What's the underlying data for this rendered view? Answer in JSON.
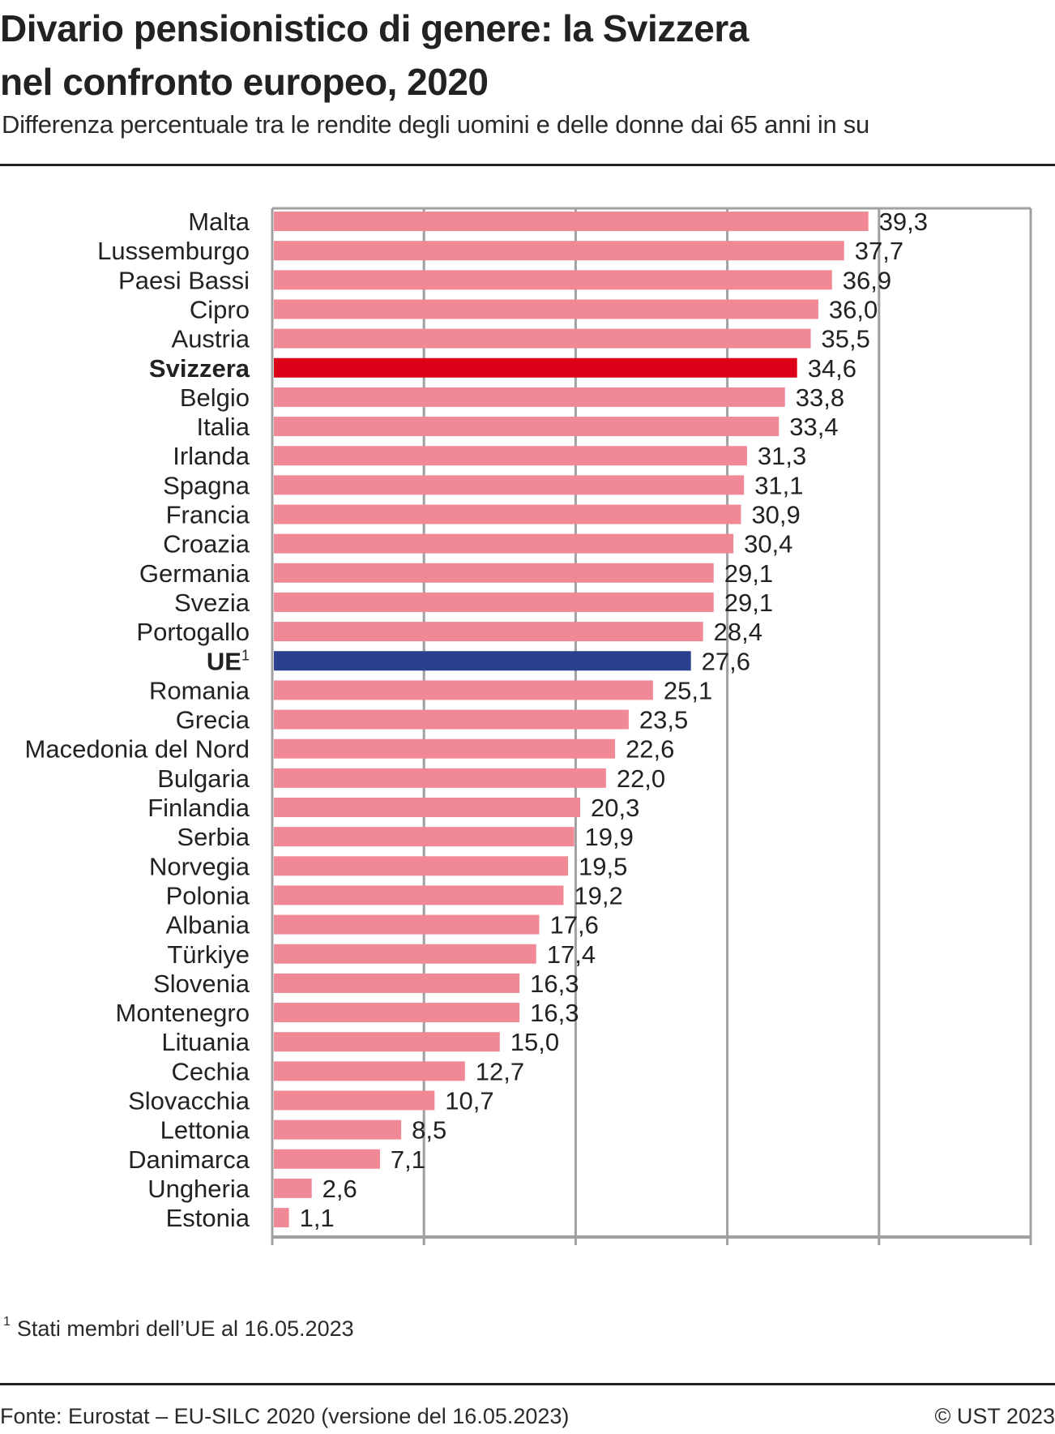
{
  "header": {
    "title_line1": "Divario pensionistico di genere: la Svizzera",
    "title_line2": "nel confronto europeo, 2020",
    "subtitle": "Differenza percentuale tra le rendite degli uomini e delle donne dai 65 anni in su"
  },
  "colors": {
    "default_bar": "#f08896",
    "highlight_bar": "#db0017",
    "eu_bar": "#2b418d",
    "grid": "#a0a0a0"
  },
  "chart_data": {
    "type": "bar",
    "orientation": "horizontal",
    "title": "Divario pensionistico di genere: la Svizzera nel confronto europeo, 2020",
    "subtitle": "Differenza percentuale tra le rendite degli uomini e delle donne dai 65 anni in su",
    "xlabel": "",
    "ylabel": "",
    "xlim": [
      0,
      50
    ],
    "x_ticks": [
      0,
      10,
      20,
      30,
      40,
      50
    ],
    "x_tick_labels": [
      "0%",
      "10%",
      "20%",
      "30%",
      "40%",
      "50%"
    ],
    "grid": true,
    "categories": [
      "Malta",
      "Lussemburgo",
      "Paesi Bassi",
      "Cipro",
      "Austria",
      "Svizzera",
      "Belgio",
      "Italia",
      "Irlanda",
      "Spagna",
      "Francia",
      "Croazia",
      "Germania",
      "Svezia",
      "Portogallo",
      "UE",
      "Romania",
      "Grecia",
      "Macedonia del Nord",
      "Bulgaria",
      "Finlandia",
      "Serbia",
      "Norvegia",
      "Polonia",
      "Albania",
      "Türkiye",
      "Slovenia",
      "Montenegro",
      "Lituania",
      "Cechia",
      "Slovacchia",
      "Lettonia",
      "Danimarca",
      "Ungheria",
      "Estonia"
    ],
    "values": [
      39.3,
      37.7,
      36.9,
      36.0,
      35.5,
      34.6,
      33.8,
      33.4,
      31.3,
      31.1,
      30.9,
      30.4,
      29.1,
      29.1,
      28.4,
      27.6,
      25.1,
      23.5,
      22.6,
      22.0,
      20.3,
      19.9,
      19.5,
      19.2,
      17.6,
      17.4,
      16.3,
      16.3,
      15.0,
      12.7,
      10.7,
      8.5,
      7.1,
      2.6,
      1.1
    ],
    "value_labels": [
      "39,3",
      "37,7",
      "36,9",
      "36,0",
      "35,5",
      "34,6",
      "33,8",
      "33,4",
      "31,3",
      "31,1",
      "30,9",
      "30,4",
      "29,1",
      "29,1",
      "28,4",
      "27,6",
      "25,1",
      "23,5",
      "22,6",
      "22,0",
      "20,3",
      "19,9",
      "19,5",
      "19,2",
      "17,6",
      "17,4",
      "16,3",
      "16,3",
      "15,0",
      "12,7",
      "10,7",
      "8,5",
      "7,1",
      "2,6",
      "1,1"
    ],
    "highlight": {
      "Svizzera": "highlight",
      "UE": "eu"
    },
    "bold_categories": [
      "Svizzera",
      "UE"
    ],
    "footnote_markers": {
      "UE": "1"
    }
  },
  "footnote": {
    "marker": "1",
    "text": "Stati membri dell’UE al 16.05.2023"
  },
  "footer": {
    "source": "Fonte: Eurostat – EU-SILC 2020 (versione del 16.05.2023)",
    "copyright": "© UST 2023"
  }
}
